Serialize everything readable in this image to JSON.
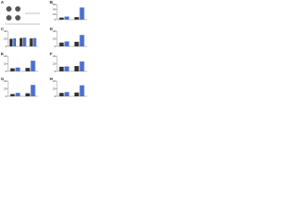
{
  "panel_a": {
    "panel": "A"
  },
  "chart_data": [
    {
      "type": "bar",
      "panel": "B",
      "categories": [
        null,
        null
      ],
      "ylim": [
        0,
        60
      ],
      "yticks": [
        0,
        20,
        40,
        60
      ],
      "series": [
        {
          "color": "#333333",
          "values": [
            8,
            10
          ]
        },
        {
          "color": "#4a6fd0",
          "values": [
            12,
            48
          ]
        }
      ]
    },
    {
      "type": "bar",
      "panel": "C",
      "categories": [
        null,
        null,
        null
      ],
      "ylim": [
        0,
        40
      ],
      "yticks": [
        0,
        20,
        40
      ],
      "series": [
        {
          "color": "#333333",
          "values": [
            20,
            22,
            21
          ]
        },
        {
          "color": "#4a6fd0",
          "values": [
            21,
            23,
            22
          ]
        }
      ]
    },
    {
      "type": "bar",
      "panel": "D",
      "categories": [
        null,
        null
      ],
      "ylim": [
        0,
        40
      ],
      "yticks": [
        0,
        20,
        40
      ],
      "series": [
        {
          "color": "#333333",
          "values": [
            10,
            12
          ]
        },
        {
          "color": "#4a6fd0",
          "values": [
            13,
            30
          ]
        }
      ]
    },
    {
      "type": "bar",
      "panel": "E",
      "categories": [
        null,
        null
      ],
      "ylim": [
        0,
        40
      ],
      "yticks": [
        0,
        20,
        40
      ],
      "series": [
        {
          "color": "#333333",
          "values": [
            8,
            9
          ]
        },
        {
          "color": "#4a6fd0",
          "values": [
            10,
            28
          ]
        }
      ]
    },
    {
      "type": "bar",
      "panel": "F",
      "categories": [
        null,
        null
      ],
      "ylim": [
        0,
        40
      ],
      "yticks": [
        0,
        20,
        40
      ],
      "series": [
        {
          "color": "#333333",
          "values": [
            12,
            14
          ]
        },
        {
          "color": "#4a6fd0",
          "values": [
            13,
            26
          ]
        }
      ]
    },
    {
      "type": "bar",
      "panel": "G",
      "categories": [
        null,
        null
      ],
      "ylim": [
        0,
        40
      ],
      "yticks": [
        0,
        20,
        40
      ],
      "series": [
        {
          "color": "#333333",
          "values": [
            6,
            8
          ]
        },
        {
          "color": "#4a6fd0",
          "values": [
            9,
            30
          ]
        }
      ]
    },
    {
      "type": "bar",
      "panel": "H",
      "categories": [
        null,
        null
      ],
      "ylim": [
        0,
        40
      ],
      "yticks": [
        0,
        20,
        40
      ],
      "series": [
        {
          "color": "#333333",
          "values": [
            9,
            10
          ]
        },
        {
          "color": "#4a6fd0",
          "values": [
            11,
            29
          ]
        }
      ]
    }
  ]
}
